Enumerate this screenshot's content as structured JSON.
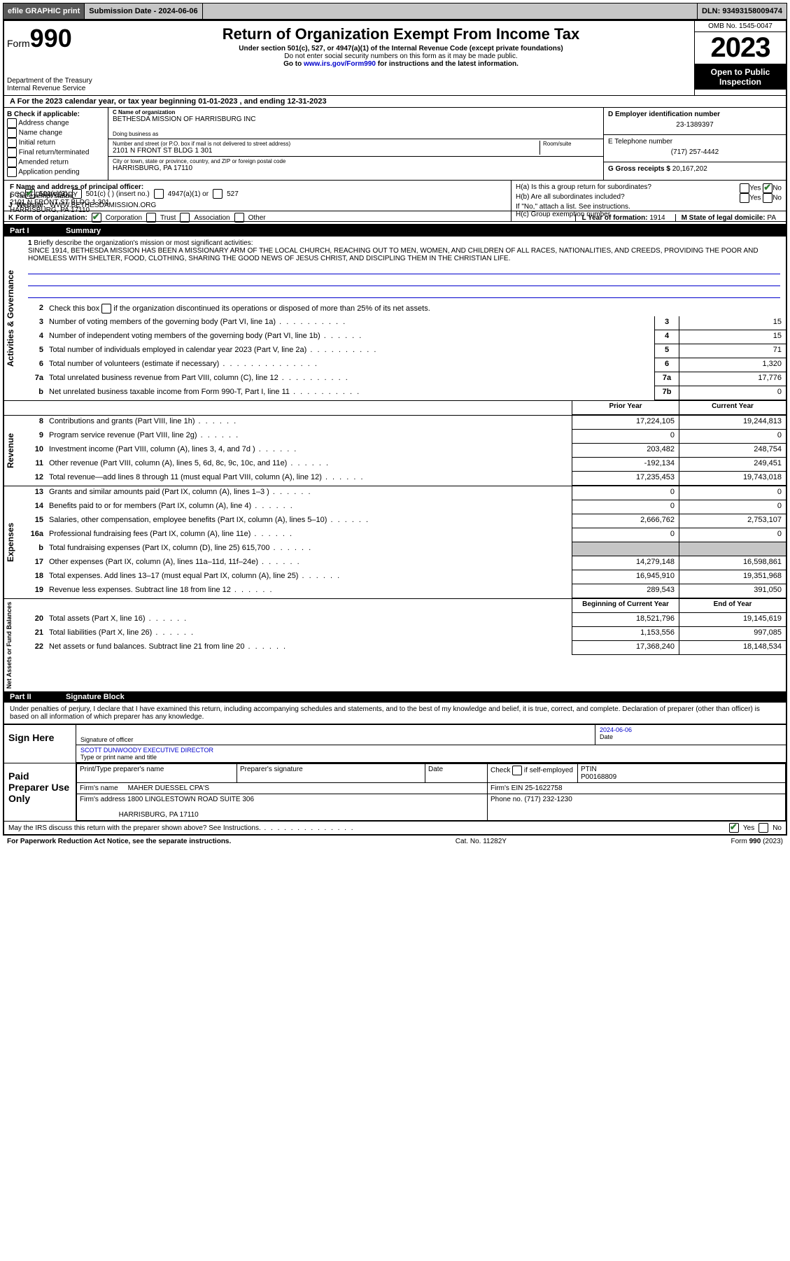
{
  "topbar": {
    "efile": "efile GRAPHIC print",
    "submission": "Submission Date - 2024-06-06",
    "dln": "DLN: 93493158009474"
  },
  "header": {
    "form_label": "Form",
    "form_num": "990",
    "title": "Return of Organization Exempt From Income Tax",
    "sub1": "Under section 501(c), 527, or 4947(a)(1) of the Internal Revenue Code (except private foundations)",
    "sub2": "Do not enter social security numbers on this form as it may be made public.",
    "sub3_pre": "Go to ",
    "sub3_link": "www.irs.gov/Form990",
    "sub3_post": " for instructions and the latest information.",
    "dept": "Department of the Treasury\nInternal Revenue Service",
    "omb": "OMB No. 1545-0047",
    "year": "2023",
    "open": "Open to Public Inspection"
  },
  "rowA": "For the 2023 calendar year, or tax year beginning 01-01-2023   , and ending 12-31-2023",
  "boxB": {
    "label": "B Check if applicable:",
    "opts": [
      "Address change",
      "Name change",
      "Initial return",
      "Final return/terminated",
      "Amended return",
      "Application pending"
    ]
  },
  "boxC": {
    "name_label": "C Name of organization",
    "name": "BETHESDA MISSION OF HARRISBURG INC",
    "dba_label": "Doing business as",
    "addr_label": "Number and street (or P.O. box if mail is not delivered to street address)",
    "room_label": "Room/suite",
    "addr": "2101 N FRONT ST BLDG 1 301",
    "city_label": "City or town, state or province, country, and ZIP or foreign postal code",
    "city": "HARRISBURG, PA  17110"
  },
  "boxD": {
    "label": "D Employer identification number",
    "val": "23-1389397"
  },
  "boxE": {
    "label": "E Telephone number",
    "val": "(717) 257-4442"
  },
  "boxG": {
    "label": "G Gross receipts $",
    "val": "20,167,202"
  },
  "boxF": {
    "label": "F Name and address of principal officer:",
    "name": "SCOTT DUNWOODY",
    "addr": "2101 N FRONT ST BLDG 1 301\nHARRISBURG, PA  17110"
  },
  "boxH": {
    "a": "H(a)  Is this a group return for subordinates?",
    "b": "H(b)  Are all subordinates included?",
    "b_note": "If \"No,\" attach a list. See instructions.",
    "c": "H(c)  Group exemption number"
  },
  "rowI": {
    "label": "Tax-exempt status:",
    "o1": "501(c)(3)",
    "o2": "501(c) (  ) (insert no.)",
    "o3": "4947(a)(1) or",
    "o4": "527"
  },
  "rowJ": {
    "label": "Website:",
    "val": "WWW.BETHESDAMISSION.ORG"
  },
  "rowK": {
    "label": "K Form of organization:",
    "o1": "Corporation",
    "o2": "Trust",
    "o3": "Association",
    "o4": "Other"
  },
  "rowL": {
    "label": "L Year of formation:",
    "val": "1914"
  },
  "rowM": {
    "label": "M State of legal domicile:",
    "val": "PA"
  },
  "part1": {
    "num": "Part I",
    "title": "Summary"
  },
  "mission": {
    "q": "Briefly describe the organization's mission or most significant activities:",
    "text": "SINCE 1914, BETHESDA MISSION HAS BEEN A MISSIONARY ARM OF THE LOCAL CHURCH, REACHING OUT TO MEN, WOMEN, AND CHILDREN OF ALL RACES, NATIONALITIES, AND CREEDS, PROVIDING THE POOR AND HOMELESS WITH SHELTER, FOOD, CLOTHING, SHARING THE GOOD NEWS OF JESUS CHRIST, AND DISCIPLING THEM IN THE CHRISTIAN LIFE."
  },
  "lines": {
    "l2": "Check this box    if the organization discontinued its operations or disposed of more than 25% of its net assets.",
    "l3": {
      "d": "Number of voting members of the governing body (Part VI, line 1a)",
      "n": "3",
      "v": "15"
    },
    "l4": {
      "d": "Number of independent voting members of the governing body (Part VI, line 1b)",
      "n": "4",
      "v": "15"
    },
    "l5": {
      "d": "Total number of individuals employed in calendar year 2023 (Part V, line 2a)",
      "n": "5",
      "v": "71"
    },
    "l6": {
      "d": "Total number of volunteers (estimate if necessary)",
      "n": "6",
      "v": "1,320"
    },
    "l7a": {
      "d": "Total unrelated business revenue from Part VIII, column (C), line 12",
      "n": "7a",
      "v": "17,776"
    },
    "l7b": {
      "d": "Net unrelated business taxable income from Form 990-T, Part I, line 11",
      "n": "7b",
      "v": "0"
    }
  },
  "tab2": {
    "h1": "Prior Year",
    "h2": "Current Year",
    "rows": [
      {
        "n": "8",
        "d": "Contributions and grants (Part VIII, line 1h)",
        "p": "17,224,105",
        "c": "19,244,813"
      },
      {
        "n": "9",
        "d": "Program service revenue (Part VIII, line 2g)",
        "p": "0",
        "c": "0"
      },
      {
        "n": "10",
        "d": "Investment income (Part VIII, column (A), lines 3, 4, and 7d )",
        "p": "203,482",
        "c": "248,754"
      },
      {
        "n": "11",
        "d": "Other revenue (Part VIII, column (A), lines 5, 6d, 8c, 9c, 10c, and 11e)",
        "p": "-192,134",
        "c": "249,451"
      },
      {
        "n": "12",
        "d": "Total revenue—add lines 8 through 11 (must equal Part VIII, column (A), line 12)",
        "p": "17,235,453",
        "c": "19,743,018"
      },
      {
        "n": "13",
        "d": "Grants and similar amounts paid (Part IX, column (A), lines 1–3 )",
        "p": "0",
        "c": "0"
      },
      {
        "n": "14",
        "d": "Benefits paid to or for members (Part IX, column (A), line 4)",
        "p": "0",
        "c": "0"
      },
      {
        "n": "15",
        "d": "Salaries, other compensation, employee benefits (Part IX, column (A), lines 5–10)",
        "p": "2,666,762",
        "c": "2,753,107"
      },
      {
        "n": "16a",
        "d": "Professional fundraising fees (Part IX, column (A), line 11e)",
        "p": "0",
        "c": "0"
      },
      {
        "n": "b",
        "d": "Total fundraising expenses (Part IX, column (D), line 25) 615,700",
        "p": "",
        "c": "",
        "gray": true
      },
      {
        "n": "17",
        "d": "Other expenses (Part IX, column (A), lines 11a–11d, 11f–24e)",
        "p": "14,279,148",
        "c": "16,598,861"
      },
      {
        "n": "18",
        "d": "Total expenses. Add lines 13–17 (must equal Part IX, column (A), line 25)",
        "p": "16,945,910",
        "c": "19,351,968"
      },
      {
        "n": "19",
        "d": "Revenue less expenses. Subtract line 18 from line 12",
        "p": "289,543",
        "c": "391,050"
      }
    ],
    "h3": "Beginning of Current Year",
    "h4": "End of Year",
    "rows2": [
      {
        "n": "20",
        "d": "Total assets (Part X, line 16)",
        "p": "18,521,796",
        "c": "19,145,619"
      },
      {
        "n": "21",
        "d": "Total liabilities (Part X, line 26)",
        "p": "1,153,556",
        "c": "997,085"
      },
      {
        "n": "22",
        "d": "Net assets or fund balances. Subtract line 21 from line 20",
        "p": "17,368,240",
        "c": "18,148,534"
      }
    ]
  },
  "sidelabels": {
    "gov": "Activities & Governance",
    "rev": "Revenue",
    "exp": "Expenses",
    "net": "Net Assets or Fund Balances"
  },
  "part2": {
    "num": "Part II",
    "title": "Signature Block"
  },
  "penalty": "Under penalties of perjury, I declare that I have examined this return, including accompanying schedules and statements, and to the best of my knowledge and belief, it is true, correct, and complete. Declaration of preparer (other than officer) is based on all information of which preparer has any knowledge.",
  "sign": {
    "here": "Sign Here",
    "sig_label": "Signature of officer",
    "date_label": "Date",
    "date": "2024-06-06",
    "name": "SCOTT DUNWOODY EXECUTIVE DIRECTOR",
    "name_label": "Type or print name and title"
  },
  "prep": {
    "label": "Paid Preparer Use Only",
    "h1": "Print/Type preparer's name",
    "h2": "Preparer's signature",
    "h3": "Date",
    "h4_pre": "Check",
    "h4_post": "if self-employed",
    "h5": "PTIN",
    "ptin": "P00168809",
    "firm_label": "Firm's name",
    "firm": "MAHER DUESSEL CPA'S",
    "ein_label": "Firm's EIN",
    "ein": "25-1622758",
    "addr_label": "Firm's address",
    "addr1": "1800 LINGLESTOWN ROAD SUITE 306",
    "addr2": "HARRISBURG, PA  17110",
    "phone_label": "Phone no.",
    "phone": "(717) 232-1230"
  },
  "discuss": "May the IRS discuss this return with the preparer shown above? See Instructions.",
  "footer": {
    "l": "For Paperwork Reduction Act Notice, see the separate instructions.",
    "c": "Cat. No. 11282Y",
    "r": "Form 990 (2023)"
  },
  "yesno": {
    "yes": "Yes",
    "no": "No"
  }
}
